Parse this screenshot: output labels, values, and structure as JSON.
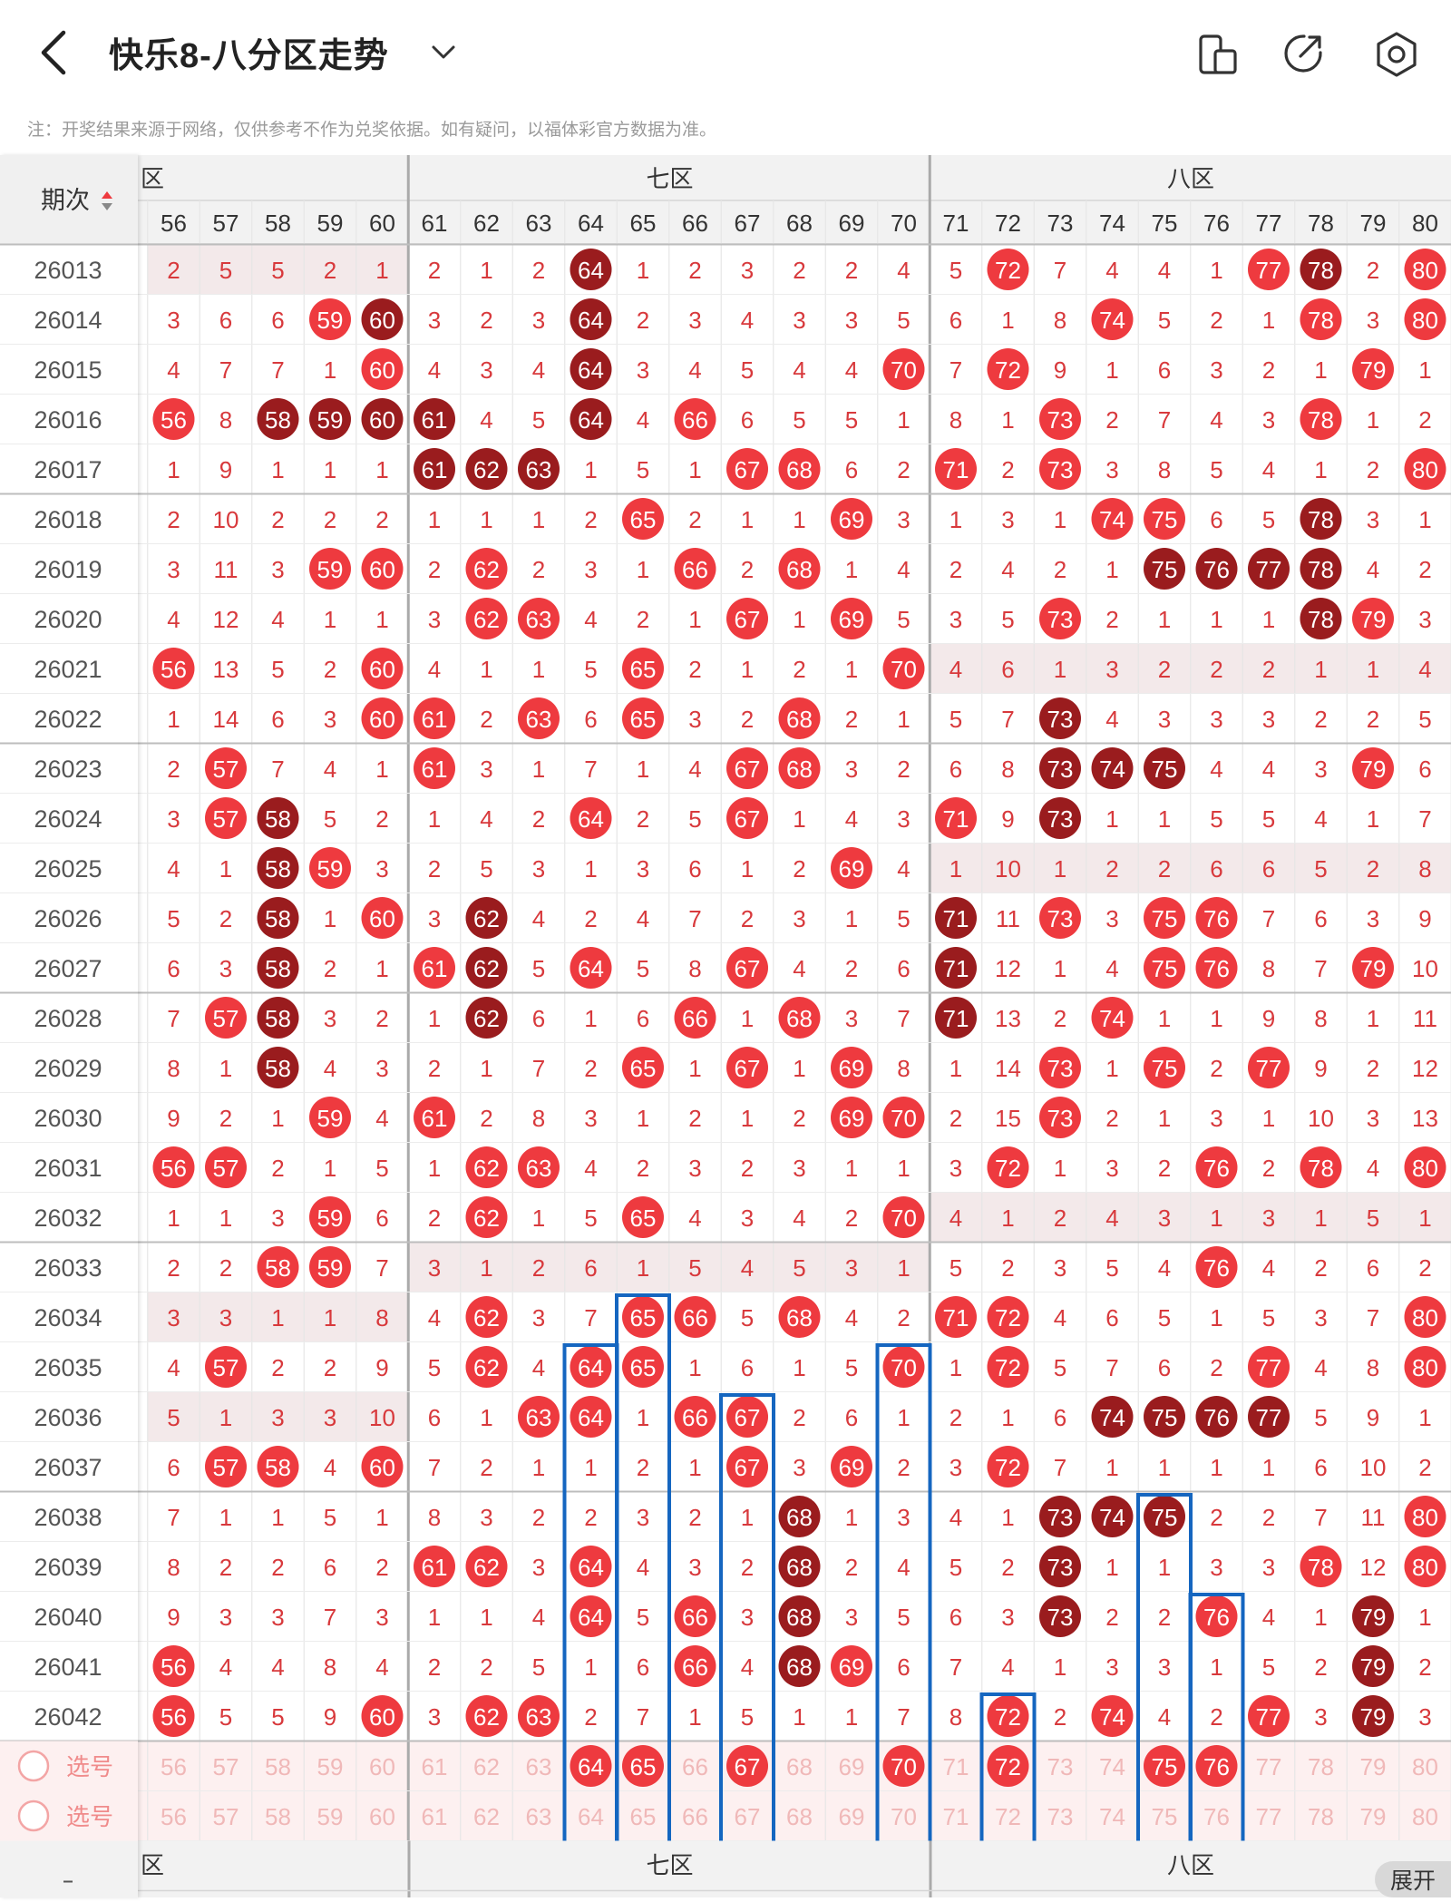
{
  "header": {
    "title": "快乐8-八分区走势"
  },
  "notice": "注：开奖结果来源于网络，仅供参考不作为兑奖依据。如有疑问，以福体彩官方数据为准。",
  "table": {
    "period_header": "期次",
    "zones": [
      {
        "label": "六区",
        "visible": "六区"
      },
      {
        "label": "七区",
        "visible": "七区"
      },
      {
        "label": "八区",
        "visible": "八区"
      }
    ],
    "columns": [
      56,
      57,
      58,
      59,
      60,
      61,
      62,
      63,
      64,
      65,
      66,
      67,
      68,
      69,
      70,
      71,
      72,
      73,
      74,
      75,
      76,
      77,
      78,
      79,
      80
    ],
    "rows": [
      {
        "period": "26013",
        "cells": [
          "2",
          "5",
          "5",
          "2",
          "1",
          "2",
          "1",
          "2",
          "64",
          "1",
          "2",
          "3",
          "2",
          "2",
          "4",
          "5",
          "72",
          "7",
          "4",
          "4",
          "1",
          "77",
          "78",
          "2",
          "80"
        ]
      },
      {
        "period": "26014",
        "cells": [
          "3",
          "6",
          "6",
          "59",
          "60",
          "3",
          "2",
          "3",
          "64",
          "2",
          "3",
          "4",
          "3",
          "3",
          "5",
          "6",
          "1",
          "8",
          "74",
          "5",
          "2",
          "1",
          "78",
          "3",
          "80"
        ]
      },
      {
        "period": "26015",
        "cells": [
          "4",
          "7",
          "7",
          "1",
          "60",
          "4",
          "3",
          "4",
          "64",
          "3",
          "4",
          "5",
          "4",
          "4",
          "70",
          "7",
          "72",
          "9",
          "1",
          "6",
          "3",
          "2",
          "1",
          "79",
          "1"
        ]
      },
      {
        "period": "26016",
        "cells": [
          "56",
          "8",
          "58",
          "59",
          "60",
          "61",
          "4",
          "5",
          "64",
          "4",
          "66",
          "6",
          "5",
          "5",
          "1",
          "8",
          "1",
          "73",
          "2",
          "7",
          "4",
          "3",
          "78",
          "1",
          "2"
        ]
      },
      {
        "period": "26017",
        "cells": [
          "1",
          "9",
          "1",
          "1",
          "1",
          "61",
          "62",
          "63",
          "1",
          "5",
          "1",
          "67",
          "68",
          "6",
          "2",
          "71",
          "2",
          "73",
          "3",
          "8",
          "5",
          "4",
          "1",
          "2",
          "80"
        ]
      },
      {
        "period": "26018",
        "cells": [
          "2",
          "10",
          "2",
          "2",
          "2",
          "1",
          "1",
          "1",
          "2",
          "65",
          "2",
          "1",
          "1",
          "69",
          "3",
          "1",
          "3",
          "1",
          "74",
          "75",
          "6",
          "5",
          "78",
          "3",
          "1"
        ]
      },
      {
        "period": "26019",
        "cells": [
          "3",
          "11",
          "3",
          "59",
          "60",
          "2",
          "62",
          "2",
          "3",
          "1",
          "66",
          "2",
          "68",
          "1",
          "4",
          "2",
          "4",
          "2",
          "1",
          "75",
          "76",
          "77",
          "78",
          "4",
          "2"
        ]
      },
      {
        "period": "26020",
        "cells": [
          "4",
          "12",
          "4",
          "1",
          "1",
          "3",
          "62",
          "63",
          "4",
          "2",
          "1",
          "67",
          "1",
          "69",
          "5",
          "3",
          "5",
          "73",
          "2",
          "1",
          "1",
          "1",
          "78",
          "79",
          "3"
        ]
      },
      {
        "period": "26021",
        "cells": [
          "56",
          "13",
          "5",
          "2",
          "60",
          "4",
          "1",
          "1",
          "5",
          "65",
          "2",
          "1",
          "2",
          "1",
          "70",
          "4",
          "6",
          "1",
          "3",
          "2",
          "2",
          "2",
          "1",
          "1",
          "4"
        ]
      },
      {
        "period": "26022",
        "cells": [
          "1",
          "14",
          "6",
          "3",
          "60",
          "61",
          "2",
          "63",
          "6",
          "65",
          "3",
          "2",
          "68",
          "2",
          "1",
          "5",
          "7",
          "73",
          "4",
          "3",
          "3",
          "3",
          "2",
          "2",
          "5"
        ]
      },
      {
        "period": "26023",
        "cells": [
          "2",
          "57",
          "7",
          "4",
          "1",
          "61",
          "3",
          "1",
          "7",
          "1",
          "4",
          "67",
          "68",
          "3",
          "2",
          "6",
          "8",
          "73",
          "74",
          "75",
          "4",
          "4",
          "3",
          "79",
          "6"
        ]
      },
      {
        "period": "26024",
        "cells": [
          "3",
          "57",
          "58",
          "5",
          "2",
          "1",
          "4",
          "2",
          "64",
          "2",
          "5",
          "67",
          "1",
          "4",
          "3",
          "71",
          "9",
          "73",
          "1",
          "1",
          "5",
          "5",
          "4",
          "1",
          "7"
        ]
      },
      {
        "period": "26025",
        "cells": [
          "4",
          "1",
          "58",
          "59",
          "3",
          "2",
          "5",
          "3",
          "1",
          "3",
          "6",
          "1",
          "2",
          "69",
          "4",
          "1",
          "10",
          "1",
          "2",
          "2",
          "6",
          "6",
          "5",
          "2",
          "8"
        ]
      },
      {
        "period": "26026",
        "cells": [
          "5",
          "2",
          "58",
          "1",
          "60",
          "3",
          "62",
          "4",
          "2",
          "4",
          "7",
          "2",
          "3",
          "1",
          "5",
          "71",
          "11",
          "73",
          "3",
          "75",
          "76",
          "7",
          "6",
          "3",
          "9"
        ]
      },
      {
        "period": "26027",
        "cells": [
          "6",
          "3",
          "58",
          "2",
          "1",
          "61",
          "62",
          "5",
          "64",
          "5",
          "8",
          "67",
          "4",
          "2",
          "6",
          "71",
          "12",
          "1",
          "4",
          "75",
          "76",
          "8",
          "7",
          "79",
          "10"
        ]
      },
      {
        "period": "26028",
        "cells": [
          "7",
          "57",
          "58",
          "3",
          "2",
          "1",
          "62",
          "6",
          "1",
          "6",
          "66",
          "1",
          "68",
          "3",
          "7",
          "71",
          "13",
          "2",
          "74",
          "1",
          "1",
          "9",
          "8",
          "1",
          "11"
        ]
      },
      {
        "period": "26029",
        "cells": [
          "8",
          "1",
          "58",
          "4",
          "3",
          "2",
          "1",
          "7",
          "2",
          "65",
          "1",
          "67",
          "1",
          "69",
          "8",
          "1",
          "14",
          "73",
          "1",
          "75",
          "2",
          "77",
          "9",
          "2",
          "12"
        ]
      },
      {
        "period": "26030",
        "cells": [
          "9",
          "2",
          "1",
          "59",
          "4",
          "61",
          "2",
          "8",
          "3",
          "1",
          "2",
          "1",
          "2",
          "69",
          "70",
          "2",
          "15",
          "73",
          "2",
          "1",
          "3",
          "1",
          "10",
          "3",
          "13"
        ]
      },
      {
        "period": "26031",
        "cells": [
          "56",
          "57",
          "2",
          "1",
          "5",
          "1",
          "62",
          "63",
          "4",
          "2",
          "3",
          "2",
          "3",
          "1",
          "1",
          "3",
          "72",
          "1",
          "3",
          "2",
          "76",
          "2",
          "78",
          "4",
          "80"
        ]
      },
      {
        "period": "26032",
        "cells": [
          "1",
          "1",
          "3",
          "59",
          "6",
          "2",
          "62",
          "1",
          "5",
          "65",
          "4",
          "3",
          "4",
          "2",
          "70",
          "4",
          "1",
          "2",
          "4",
          "3",
          "1",
          "3",
          "1",
          "5",
          "1"
        ]
      },
      {
        "period": "26033",
        "cells": [
          "2",
          "2",
          "58",
          "59",
          "7",
          "3",
          "1",
          "2",
          "6",
          "1",
          "5",
          "4",
          "5",
          "3",
          "1",
          "5",
          "2",
          "3",
          "5",
          "4",
          "76",
          "4",
          "2",
          "6",
          "2"
        ]
      },
      {
        "period": "26034",
        "cells": [
          "3",
          "3",
          "1",
          "1",
          "8",
          "4",
          "62",
          "3",
          "7",
          "65",
          "66",
          "5",
          "68",
          "4",
          "2",
          "71",
          "72",
          "4",
          "6",
          "5",
          "1",
          "5",
          "3",
          "7",
          "80"
        ]
      },
      {
        "period": "26035",
        "cells": [
          "4",
          "57",
          "2",
          "2",
          "9",
          "5",
          "62",
          "4",
          "64",
          "65",
          "1",
          "6",
          "1",
          "5",
          "70",
          "1",
          "72",
          "5",
          "7",
          "6",
          "2",
          "77",
          "4",
          "8",
          "80"
        ]
      },
      {
        "period": "26036",
        "cells": [
          "5",
          "1",
          "3",
          "3",
          "10",
          "6",
          "1",
          "63",
          "64",
          "1",
          "66",
          "67",
          "2",
          "6",
          "1",
          "2",
          "1",
          "6",
          "74",
          "75",
          "76",
          "77",
          "5",
          "9",
          "1"
        ]
      },
      {
        "period": "26037",
        "cells": [
          "6",
          "57",
          "58",
          "4",
          "60",
          "7",
          "2",
          "1",
          "1",
          "2",
          "1",
          "67",
          "3",
          "69",
          "2",
          "3",
          "72",
          "7",
          "1",
          "1",
          "1",
          "1",
          "6",
          "10",
          "2"
        ]
      },
      {
        "period": "26038",
        "cells": [
          "7",
          "1",
          "1",
          "5",
          "1",
          "8",
          "3",
          "2",
          "2",
          "3",
          "2",
          "1",
          "68",
          "1",
          "3",
          "4",
          "1",
          "73",
          "74",
          "75",
          "2",
          "2",
          "7",
          "11",
          "80"
        ]
      },
      {
        "period": "26039",
        "cells": [
          "8",
          "2",
          "2",
          "6",
          "2",
          "61",
          "62",
          "3",
          "64",
          "4",
          "3",
          "2",
          "68",
          "2",
          "4",
          "5",
          "2",
          "73",
          "1",
          "1",
          "3",
          "3",
          "78",
          "12",
          "80"
        ]
      },
      {
        "period": "26040",
        "cells": [
          "9",
          "3",
          "3",
          "7",
          "3",
          "1",
          "1",
          "4",
          "64",
          "5",
          "66",
          "3",
          "68",
          "3",
          "5",
          "6",
          "3",
          "73",
          "2",
          "2",
          "76",
          "4",
          "1",
          "79",
          "1"
        ]
      },
      {
        "period": "26041",
        "cells": [
          "56",
          "4",
          "4",
          "8",
          "4",
          "2",
          "2",
          "5",
          "1",
          "6",
          "66",
          "4",
          "68",
          "69",
          "6",
          "7",
          "4",
          "1",
          "3",
          "3",
          "1",
          "5",
          "2",
          "79",
          "2"
        ]
      },
      {
        "period": "26042",
        "cells": [
          "56",
          "5",
          "5",
          "9",
          "60",
          "3",
          "62",
          "63",
          "2",
          "7",
          "1",
          "5",
          "1",
          "1",
          "7",
          "8",
          "72",
          "2",
          "74",
          "4",
          "2",
          "77",
          "3",
          "79",
          "3"
        ]
      }
    ],
    "select_rows": [
      {
        "label": "选号",
        "cells": [
          "56",
          "57",
          "58",
          "59",
          "60",
          "61",
          "62",
          "63",
          "64",
          "65",
          "66",
          "67",
          "68",
          "69",
          "70",
          "71",
          "72",
          "73",
          "74",
          "75",
          "76",
          "77",
          "78",
          "79",
          "80"
        ],
        "selected": [
          "64",
          "65",
          "67",
          "70",
          "72",
          "75",
          "76"
        ]
      },
      {
        "label": "选号",
        "cells": [
          "56",
          "57",
          "58",
          "59",
          "60",
          "61",
          "62",
          "63",
          "64",
          "65",
          "66",
          "67",
          "68",
          "69",
          "70",
          "71",
          "72",
          "73",
          "74",
          "75",
          "76",
          "77",
          "78",
          "79",
          "80"
        ],
        "selected": []
      }
    ],
    "dark_balls": [
      "26013:64",
      "26013:78",
      "26014:60",
      "26014:64",
      "26015:64",
      "26016:58",
      "26016:59",
      "26016:60",
      "26016:61",
      "26016:64",
      "26017:61",
      "26017:62",
      "26017:63",
      "26018:78",
      "26019:75",
      "26019:76",
      "26019:77",
      "26019:78",
      "26020:78",
      "26022:73",
      "26023:73",
      "26023:74",
      "26023:75",
      "26024:58",
      "26024:73",
      "26025:58",
      "26026:58",
      "26026:62",
      "26026:71",
      "26027:58",
      "26027:62",
      "26027:71",
      "26028:58",
      "26028:62",
      "26028:71",
      "26029:58",
      "26036:74",
      "26036:75",
      "26036:76",
      "26036:77",
      "26038:68",
      "26038:73",
      "26038:74",
      "26038:75",
      "26039:68",
      "26039:73",
      "26040:68",
      "26040:73",
      "26040:79",
      "26041:68",
      "26041:79",
      "26042:79"
    ],
    "footer_zones": [
      "六区",
      "七区",
      "八区"
    ]
  },
  "expand_label": "展开",
  "colors": {
    "red": "#ee3a3f",
    "dark": "#9a1c1e",
    "num": "#d8393c",
    "grey": "#555555",
    "box": "#1566c0",
    "tint": "#f3e9ea",
    "pink": "#fdf0f0"
  }
}
